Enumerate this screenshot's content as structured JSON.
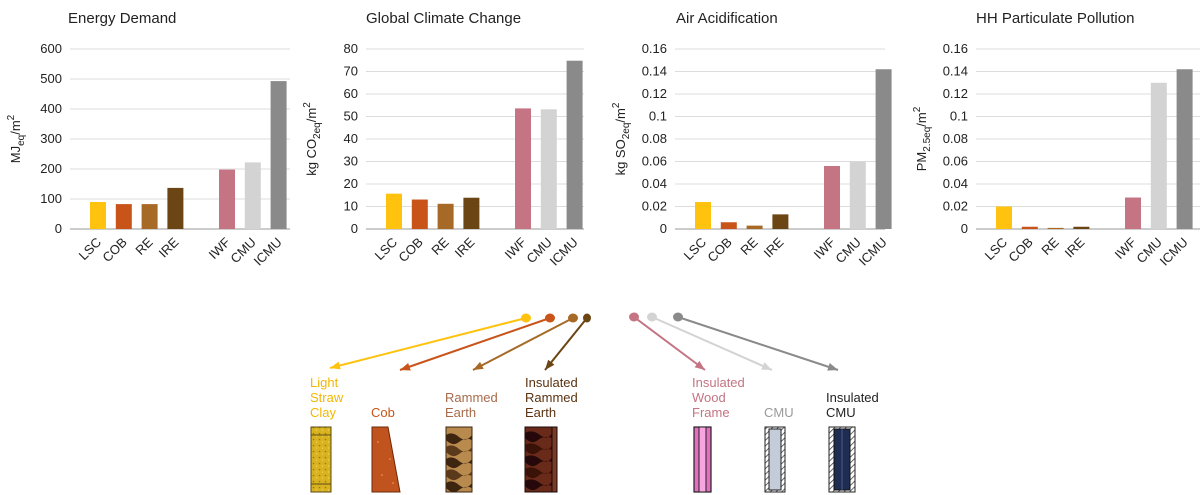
{
  "categories": [
    "LSC",
    "COB",
    "RE",
    "IRE",
    "IWF",
    "CMU",
    "ICMU"
  ],
  "colors": {
    "LSC": "#ffc20e",
    "COB": "#c8541a",
    "RE": "#a76a26",
    "IRE": "#6b4513",
    "IWF": "#c47483",
    "CMU": "#d3d3d3",
    "ICMU": "#8a8a8a"
  },
  "chart_data": [
    {
      "type": "bar",
      "title": "Energy Demand",
      "ylabel": "MJ",
      "ylabel_sub": "eq",
      "ylabel_rest": "/m",
      "ylabel_sup": "2",
      "categories": [
        "LSC",
        "COB",
        "RE",
        "IRE",
        "IWF",
        "CMU",
        "ICMU"
      ],
      "values": [
        90,
        83,
        83,
        137,
        198,
        222,
        493
      ],
      "ylim": [
        0,
        600
      ],
      "ticks": [
        "0",
        "100",
        "200",
        "300",
        "400",
        "500",
        "600"
      ],
      "tick_values": [
        0,
        100,
        200,
        300,
        400,
        500,
        600
      ],
      "grid": true
    },
    {
      "type": "bar",
      "title": "Global Climate Change",
      "ylabel": "kg CO",
      "ylabel_sub": "2eq",
      "ylabel_rest": "/m",
      "ylabel_sup": "2",
      "categories": [
        "LSC",
        "COB",
        "RE",
        "IRE",
        "IWF",
        "CMU",
        "ICMU"
      ],
      "values": [
        15.7,
        13.1,
        11.2,
        13.9,
        53.6,
        53.2,
        74.8
      ],
      "ylim": [
        0,
        80
      ],
      "ticks": [
        "0",
        "10",
        "20",
        "30",
        "40",
        "50",
        "60",
        "70",
        "80"
      ],
      "tick_values": [
        0,
        10,
        20,
        30,
        40,
        50,
        60,
        70,
        80
      ],
      "grid": true
    },
    {
      "type": "bar",
      "title": "Air Acidification",
      "ylabel": "kg SO",
      "ylabel_sub": "2eq",
      "ylabel_rest": "/m",
      "ylabel_sup": "2",
      "categories": [
        "LSC",
        "COB",
        "RE",
        "IRE",
        "IWF",
        "CMU",
        "ICMU"
      ],
      "values": [
        0.024,
        0.006,
        0.003,
        0.013,
        0.056,
        0.06,
        0.142
      ],
      "ylim": [
        0,
        0.16
      ],
      "ticks": [
        "0",
        "0.02",
        "0.04",
        "0.06",
        "0.08",
        "0.1",
        "0.12",
        "0.14",
        "0.16"
      ],
      "tick_values": [
        0,
        0.02,
        0.04,
        0.06,
        0.08,
        0.1,
        0.12,
        0.14,
        0.16
      ],
      "grid": true
    },
    {
      "type": "bar",
      "title": "HH Particulate Pollution",
      "ylabel": "PM",
      "ylabel_sub": "2.5eq",
      "ylabel_rest": "/m",
      "ylabel_sup": "2",
      "categories": [
        "LSC",
        "COB",
        "RE",
        "IRE",
        "IWF",
        "CMU",
        "ICMU"
      ],
      "values": [
        0.02,
        0.002,
        0.001,
        0.002,
        0.028,
        0.13,
        0.142
      ],
      "ylim": [
        0,
        0.16
      ],
      "ticks": [
        "0",
        "0.02",
        "0.04",
        "0.06",
        "0.08",
        "0.1",
        "0.12",
        "0.14",
        "0.16"
      ],
      "tick_values": [
        0,
        0.02,
        0.04,
        0.06,
        0.08,
        0.1,
        0.12,
        0.14,
        0.16
      ],
      "grid": true
    }
  ],
  "walls": [
    {
      "code": "LSC",
      "label": "Light\nStraw\nClay",
      "color": "#ffc20e",
      "label_color": "#f2b705",
      "icon": "light-straw-clay-section-icon"
    },
    {
      "code": "COB",
      "label": "Cob",
      "color": "#c8541a",
      "label_color": "#c8541a",
      "icon": "cob-section-icon"
    },
    {
      "code": "RE",
      "label": "Rammed\nEarth",
      "color": "#a76a26",
      "label_color": "#a76a4a",
      "icon": "rammed-earth-section-icon"
    },
    {
      "code": "IRE",
      "label": "Insulated\nRammed\nEarth",
      "color": "#6b4513",
      "label_color": "#5a3210",
      "icon": "insulated-rammed-earth-section-icon"
    },
    {
      "code": "IWF",
      "label": "Insulated\nWood\nFrame",
      "color": "#c47483",
      "label_color": "#c47483",
      "icon": "insulated-wood-frame-section-icon"
    },
    {
      "code": "CMU",
      "label": "CMU",
      "color": "#d3d3d3",
      "label_color": "#9a9a9a",
      "icon": "cmu-section-icon"
    },
    {
      "code": "ICMU",
      "label": "Insulated\nCMU",
      "color": "#8a8a8a",
      "label_color": "#222222",
      "icon": "insulated-cmu-section-icon"
    }
  ]
}
